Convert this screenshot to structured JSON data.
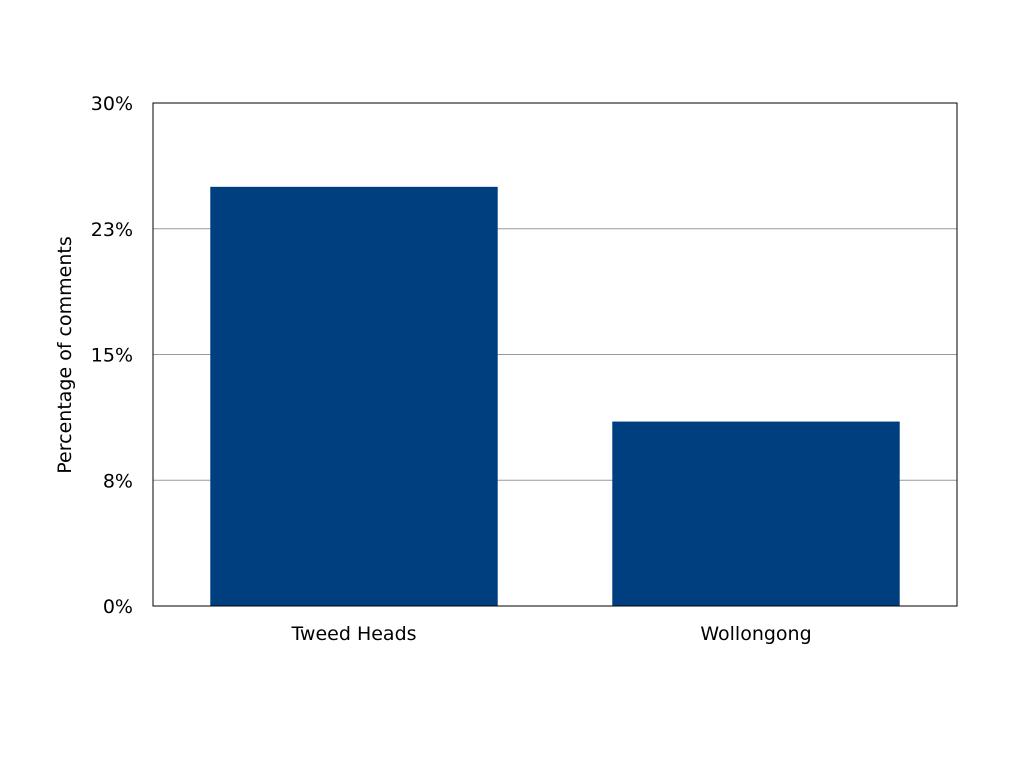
{
  "chart_data": {
    "type": "bar",
    "ylabel": "Percentage of comments",
    "xlabel": "",
    "categories": [
      "Tweed Heads",
      "Wollongong"
    ],
    "values": [
      25.0,
      11.0
    ],
    "ylim": [
      0,
      30
    ],
    "yticks": [
      0,
      7.5,
      15,
      22.5,
      30
    ],
    "ytick_labels": [
      "0%",
      "8%",
      "15%",
      "23%",
      "30%"
    ],
    "grid": true,
    "legend": "none",
    "bar_color": "#003f7f",
    "gridline_color": "#9a9a9a",
    "frame_color": "#000000"
  }
}
